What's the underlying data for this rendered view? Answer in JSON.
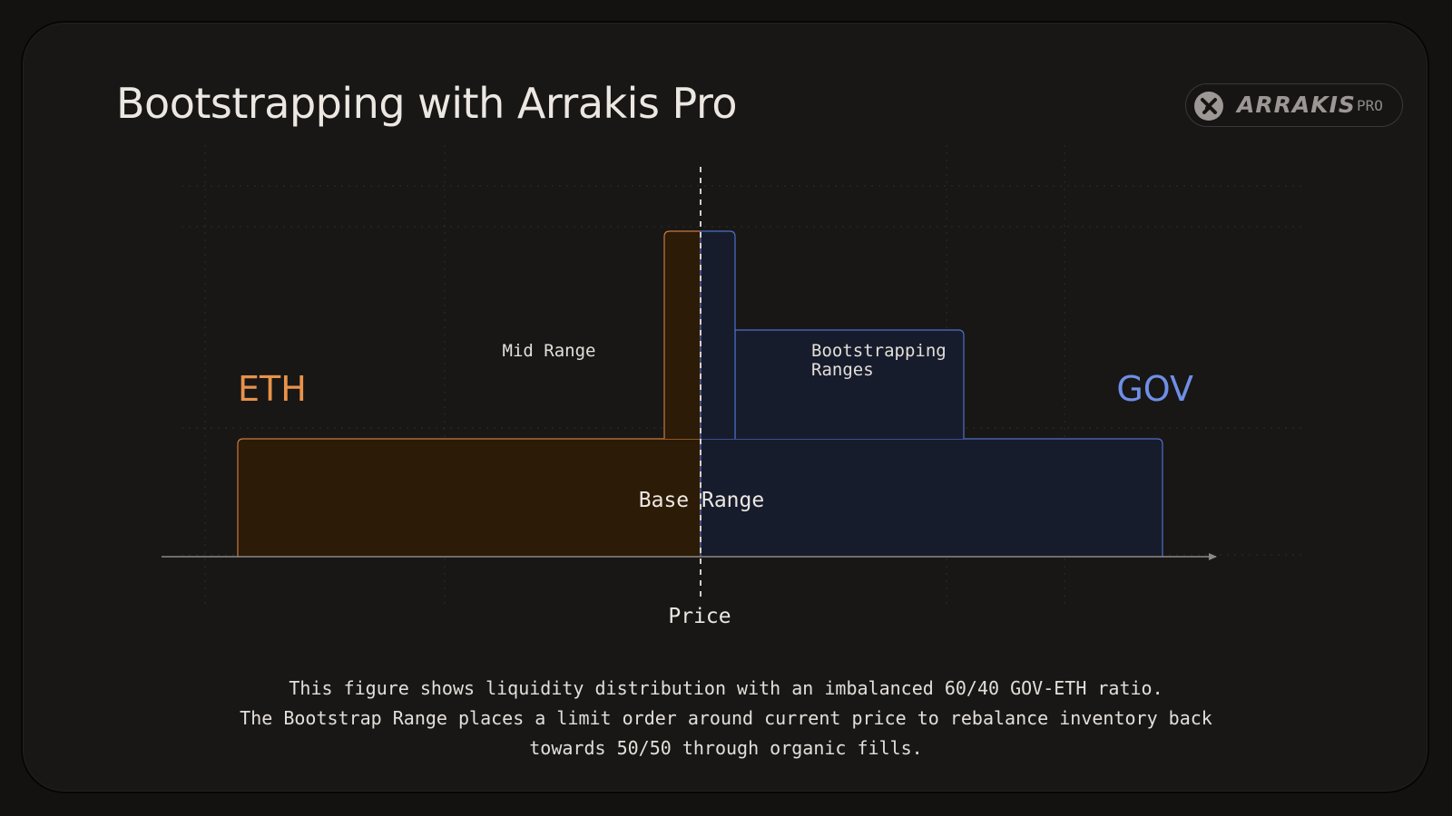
{
  "header": {
    "title": "Bootstrapping with Arrakis Pro"
  },
  "badge": {
    "logo_icon": "arrakis-x-icon",
    "name": "ARRAKIS",
    "sub": "PRO"
  },
  "diagram": {
    "left_token": "ETH",
    "right_token": "GOV",
    "base_range_label": "Base Range",
    "mid_range_label": "Mid Range",
    "bootstrap_label_line1": "Bootstrapping",
    "bootstrap_label_line2": "Ranges",
    "axis_label": "Price"
  },
  "caption": {
    "line1": "This figure shows liquidity distribution with an imbalanced 60/40 GOV-ETH ratio.",
    "line2": "The Bootstrap Range places a limit order around current price to rebalance inventory back",
    "line3": "towards 50/50 through organic fills."
  },
  "colors": {
    "eth": "#e8924a",
    "eth_fill": "#2c1b06",
    "gov": "#6f8fe6",
    "gov_fill": "#161c2b",
    "gov_border": "#4f6fc8"
  }
}
